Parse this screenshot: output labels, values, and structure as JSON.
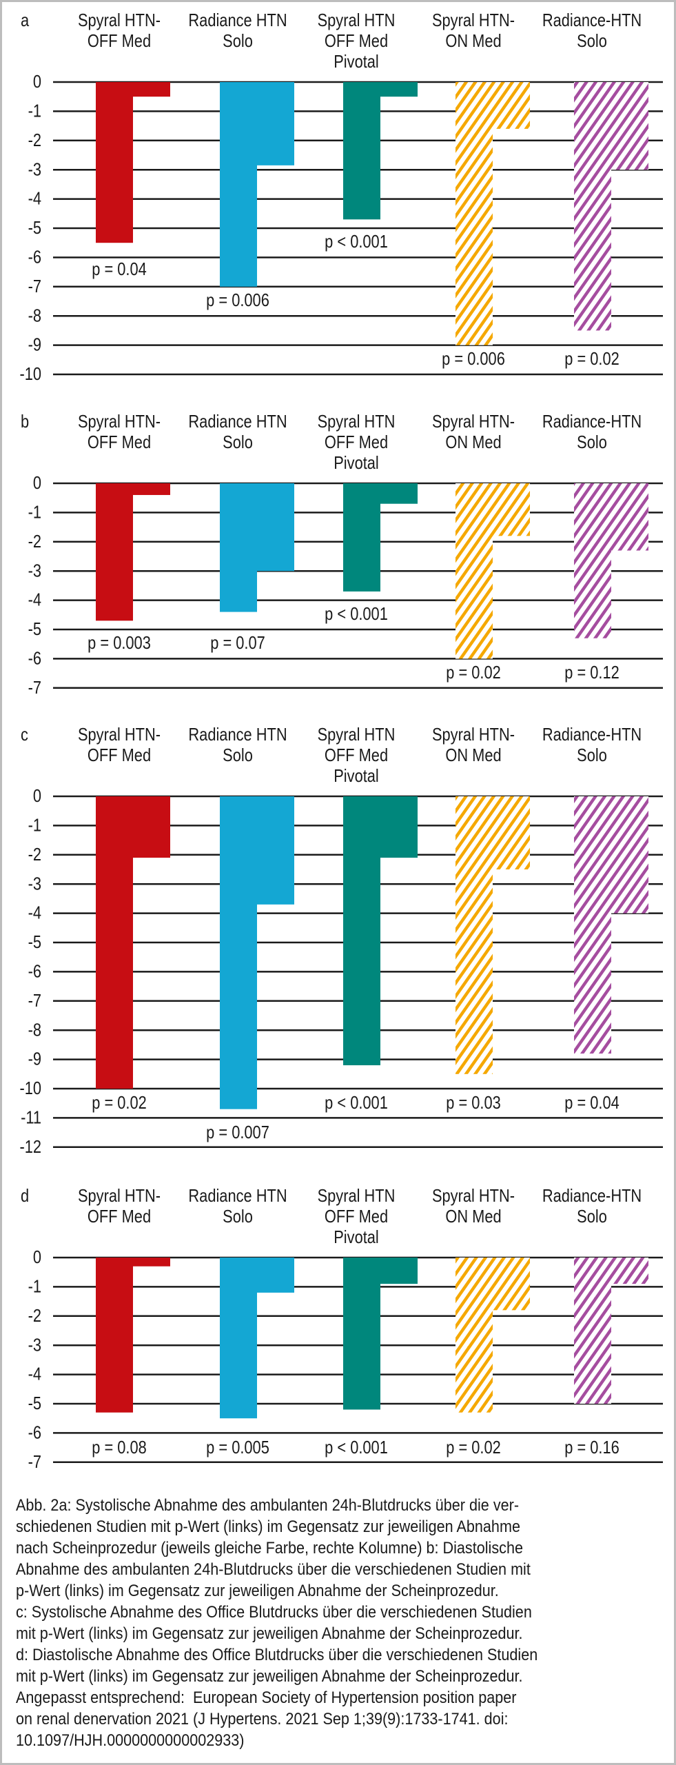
{
  "chart_data": [
    {
      "type": "bar",
      "panel_label": "a",
      "categories": [
        [
          "Spyral HTN-",
          "OFF Med"
        ],
        [
          "Radiance HTN",
          "Solo"
        ],
        [
          "Spyral HTN",
          "OFF Med",
          "Pivotal"
        ],
        [
          "Spyral HTN-",
          "ON Med"
        ],
        [
          "Radiance-HTN",
          "Solo"
        ]
      ],
      "series": [
        {
          "values": [
            -5.5,
            -7.0,
            -4.7,
            -9.0,
            -8.5
          ]
        },
        {
          "values": [
            -0.5,
            -2.85,
            -0.5,
            -1.6,
            -3.0
          ]
        }
      ],
      "p_values": [
        "p = 0.04",
        "p = 0.006",
        "p < 0.001",
        "p = 0.006",
        "p = 0.02"
      ],
      "ylim": [
        -10,
        0
      ],
      "yticks": [
        "0",
        "-1",
        "-2",
        "-3",
        "-4",
        "-5",
        "-6",
        "-7",
        "-8",
        "-9",
        "-10"
      ],
      "grid": true
    },
    {
      "type": "bar",
      "panel_label": "b",
      "categories": [
        [
          "Spyral HTN-",
          "OFF Med"
        ],
        [
          "Radiance HTN",
          "Solo"
        ],
        [
          "Spyral HTN",
          "OFF Med",
          "Pivotal"
        ],
        [
          "Spyral HTN-",
          "ON Med"
        ],
        [
          "Radiance-HTN",
          "Solo"
        ]
      ],
      "series": [
        {
          "values": [
            -4.7,
            -4.4,
            -3.7,
            -6.0,
            -5.3
          ]
        },
        {
          "values": [
            -0.4,
            -3.0,
            -0.7,
            -1.8,
            -2.3
          ]
        }
      ],
      "p_values": [
        "p = 0.003",
        "p = 0.07",
        "p < 0.001",
        "p = 0.02",
        "p = 0.12"
      ],
      "ylim": [
        -7,
        0
      ],
      "yticks": [
        "0",
        "-1",
        "-2",
        "-3",
        "-4",
        "-5",
        "-6",
        "-7"
      ],
      "grid": true
    },
    {
      "type": "bar",
      "panel_label": "c",
      "categories": [
        [
          "Spyral HTN-",
          "OFF Med"
        ],
        [
          "Radiance HTN",
          "Solo"
        ],
        [
          "Spyral HTN",
          "OFF Med",
          "Pivotal"
        ],
        [
          "Spyral HTN-",
          "ON Med"
        ],
        [
          "Radiance-HTN",
          "Solo"
        ]
      ],
      "series": [
        {
          "values": [
            -10.0,
            -10.7,
            -9.2,
            -9.5,
            -8.8
          ]
        },
        {
          "values": [
            -2.1,
            -3.7,
            -2.1,
            -2.5,
            -4.0
          ]
        }
      ],
      "p_values": [
        "p = 0.02",
        "p = 0.007",
        "p < 0.001",
        "p = 0.03",
        "p = 0.04"
      ],
      "ylim": [
        -12,
        0
      ],
      "yticks": [
        "0",
        "-1",
        "-2",
        "-3",
        "-4",
        "-5",
        "-6",
        "-7",
        "-8",
        "-9",
        "-10",
        "-11",
        "-12"
      ],
      "grid": true
    },
    {
      "type": "bar",
      "panel_label": "d",
      "categories": [
        [
          "Spyral HTN-",
          "OFF Med"
        ],
        [
          "Radiance HTN",
          "Solo"
        ],
        [
          "Spyral HTN",
          "OFF Med",
          "Pivotal"
        ],
        [
          "Spyral HTN-",
          "ON Med"
        ],
        [
          "Radiance-HTN",
          "Solo"
        ]
      ],
      "series": [
        {
          "values": [
            -5.3,
            -5.5,
            -5.2,
            -5.3,
            -5.0
          ]
        },
        {
          "values": [
            -0.3,
            -1.2,
            -0.9,
            -1.8,
            -0.9
          ]
        }
      ],
      "p_values": [
        "p = 0.08",
        "p = 0.005",
        "p < 0.001",
        "p = 0.02",
        "p = 0.16"
      ],
      "ylim": [
        -7,
        0
      ],
      "yticks": [
        "0",
        "-1",
        "-2",
        "-3",
        "-4",
        "-5",
        "-6",
        "-7"
      ],
      "grid": true
    }
  ],
  "colors": {
    "category_fills": [
      "#c70d13",
      "#14a7d3",
      "#00877c",
      "#f5a800",
      "#a54d9f"
    ],
    "hatched": [
      false,
      false,
      false,
      true,
      true
    ],
    "grid": "#1a1a1a"
  },
  "caption": {
    "lines": [
      "Abb. 2a: Systolische Abnahme des ambulanten 24h-Blutdrucks über die ver-",
      "schiedenen Studien mit p-Wert (links) im Gegensatz zur jeweiligen Abnahme",
      "nach Scheinprozedur (jeweils gleiche Farbe, rechte Kolumne) b: Diastolische",
      "Abnahme des ambulanten 24h-Blutdrucks über die verschiedenen Studien mit",
      "p-Wert (links) im Gegensatz zur jeweiligen Abnahme der Scheinprozedur.",
      "c: Systolische Abnahme des Office Blutdrucks über die verschiedenen Studien",
      "mit p-Wert (links) im Gegensatz zur jeweiligen Abnahme der Scheinprozedur.",
      "d: Diastolische Abnahme des Office Blutdrucks über die verschiedenen Studien",
      "mit p-Wert (links) im Gegensatz zur jeweiligen Abnahme der Scheinprozedur.",
      "Angepasst entsprechend:  European Society of Hypertension position paper",
      "on renal denervation 2021 (J Hypertens. 2021 Sep 1;39(9):1733-1741. doi:",
      "10.1097/HJH.0000000000002933)"
    ]
  }
}
